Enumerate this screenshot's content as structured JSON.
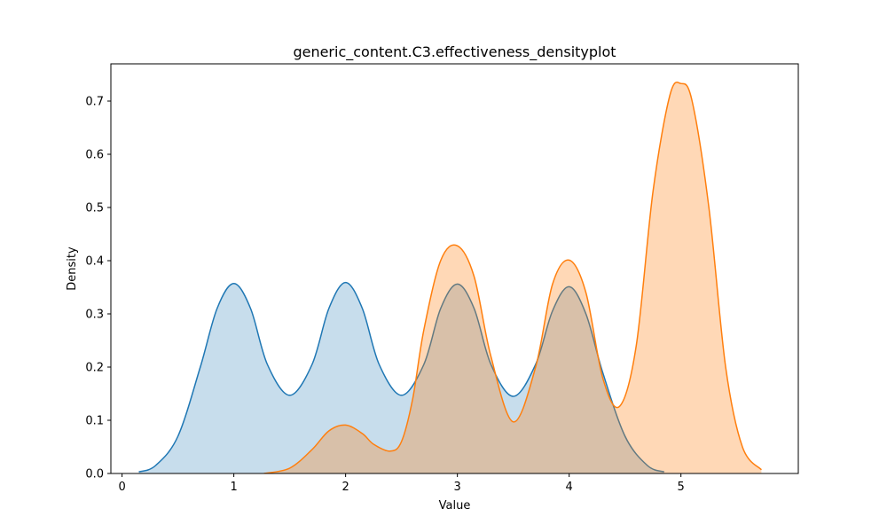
{
  "chart_data": {
    "type": "area",
    "title": "generic_content.C3.effectiveness_densityplot",
    "xlabel": "Value",
    "ylabel": "Density",
    "xlim": [
      -0.1,
      6.05
    ],
    "ylim": [
      0,
      0.77
    ],
    "xticks": [
      "0",
      "1",
      "2",
      "3",
      "4",
      "5"
    ],
    "yticks": [
      "0.0",
      "0.1",
      "0.2",
      "0.3",
      "0.4",
      "0.5",
      "0.6",
      "0.7"
    ],
    "grid": false,
    "legend": "none",
    "series": [
      {
        "color": "#1f77b4",
        "fill_color": "#1f77b4",
        "fill_opacity": 0.25,
        "x": [
          0.15,
          0.3,
          0.5,
          0.7,
          0.85,
          1.0,
          1.15,
          1.3,
          1.5,
          1.7,
          1.85,
          2.0,
          2.15,
          2.3,
          2.5,
          2.7,
          2.85,
          3.0,
          3.15,
          3.3,
          3.5,
          3.7,
          3.85,
          4.0,
          4.15,
          4.3,
          4.5,
          4.7,
          4.85
        ],
        "y": [
          0.003,
          0.015,
          0.07,
          0.2,
          0.31,
          0.357,
          0.31,
          0.205,
          0.147,
          0.205,
          0.31,
          0.359,
          0.31,
          0.205,
          0.147,
          0.205,
          0.31,
          0.356,
          0.31,
          0.205,
          0.145,
          0.205,
          0.305,
          0.351,
          0.3,
          0.19,
          0.07,
          0.015,
          0.003
        ]
      },
      {
        "color": "#ff7f0e",
        "fill_color": "#ff7f0e",
        "fill_opacity": 0.3,
        "x": [
          1.27,
          1.5,
          1.7,
          1.85,
          2.0,
          2.15,
          2.25,
          2.4,
          2.5,
          2.6,
          2.7,
          2.85,
          3.0,
          3.15,
          3.3,
          3.5,
          3.7,
          3.85,
          4.0,
          4.15,
          4.3,
          4.45,
          4.6,
          4.75,
          4.9,
          5.0,
          5.1,
          5.25,
          5.4,
          5.55,
          5.72
        ],
        "y": [
          0.0,
          0.01,
          0.045,
          0.08,
          0.091,
          0.075,
          0.055,
          0.042,
          0.06,
          0.14,
          0.27,
          0.4,
          0.428,
          0.37,
          0.22,
          0.097,
          0.2,
          0.355,
          0.401,
          0.34,
          0.18,
          0.126,
          0.24,
          0.53,
          0.71,
          0.733,
          0.7,
          0.5,
          0.2,
          0.05,
          0.007
        ]
      }
    ]
  }
}
